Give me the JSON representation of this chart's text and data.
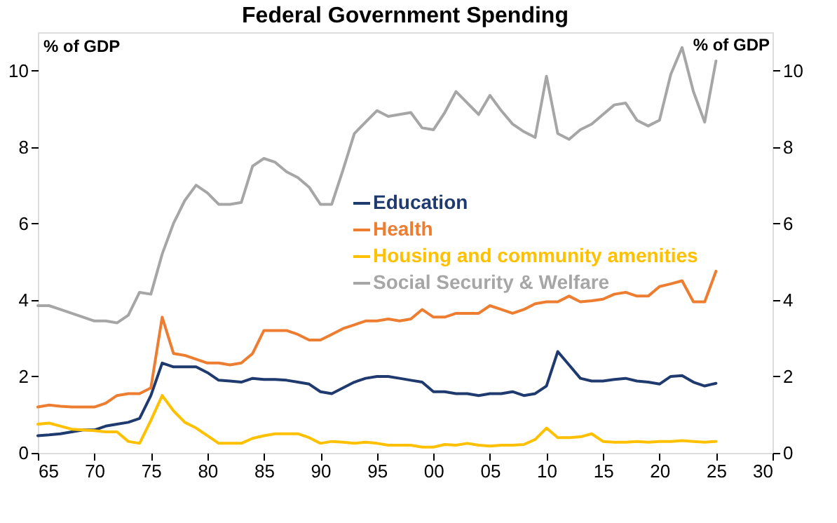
{
  "chart_data": {
    "type": "line",
    "title": "Federal Government Spending",
    "ylabel": "% of GDP",
    "y2label": "% of GDP",
    "x": [
      1965,
      1966,
      1967,
      1968,
      1969,
      1970,
      1971,
      1972,
      1973,
      1974,
      1975,
      1976,
      1977,
      1978,
      1979,
      1980,
      1981,
      1982,
      1983,
      1984,
      1985,
      1986,
      1987,
      1988,
      1989,
      1990,
      1991,
      1992,
      1993,
      1994,
      1995,
      1996,
      1997,
      1998,
      1999,
      2000,
      2001,
      2002,
      2003,
      2004,
      2005,
      2006,
      2007,
      2008,
      2009,
      2010,
      2011,
      2012,
      2013,
      2014,
      2015,
      2016,
      2017,
      2018,
      2019,
      2020,
      2021,
      2022,
      2023,
      2024,
      2025
    ],
    "series": [
      {
        "name": "Education",
        "color": "#1f3a6e",
        "values": [
          0.45,
          0.47,
          0.5,
          0.55,
          0.6,
          0.6,
          0.7,
          0.75,
          0.8,
          0.9,
          1.5,
          2.35,
          2.25,
          2.25,
          2.25,
          2.1,
          1.9,
          1.88,
          1.85,
          1.95,
          1.92,
          1.92,
          1.9,
          1.85,
          1.8,
          1.6,
          1.55,
          1.7,
          1.85,
          1.95,
          2.0,
          2.0,
          1.95,
          1.9,
          1.85,
          1.6,
          1.6,
          1.55,
          1.55,
          1.5,
          1.55,
          1.55,
          1.6,
          1.5,
          1.55,
          1.75,
          2.65,
          2.3,
          1.95,
          1.88,
          1.88,
          1.92,
          1.95,
          1.88,
          1.85,
          1.8,
          2.0,
          2.02,
          1.85,
          1.75,
          1.82
        ]
      },
      {
        "name": "Health",
        "color": "#ed7d31",
        "values": [
          1.2,
          1.25,
          1.22,
          1.2,
          1.2,
          1.2,
          1.3,
          1.5,
          1.55,
          1.55,
          1.7,
          3.55,
          2.6,
          2.55,
          2.45,
          2.35,
          2.35,
          2.3,
          2.35,
          2.6,
          3.2,
          3.2,
          3.2,
          3.1,
          2.95,
          2.95,
          3.1,
          3.25,
          3.35,
          3.45,
          3.45,
          3.5,
          3.45,
          3.5,
          3.75,
          3.55,
          3.55,
          3.65,
          3.65,
          3.65,
          3.85,
          3.75,
          3.65,
          3.75,
          3.9,
          3.95,
          3.95,
          4.1,
          3.95,
          3.98,
          4.02,
          4.15,
          4.2,
          4.1,
          4.1,
          4.35,
          4.42,
          4.5,
          3.95,
          3.95,
          4.75
        ]
      },
      {
        "name": "Housing and community amenities",
        "color": "#ffc000",
        "values": [
          0.75,
          0.78,
          0.7,
          0.62,
          0.6,
          0.58,
          0.55,
          0.55,
          0.3,
          0.25,
          0.85,
          1.5,
          1.1,
          0.8,
          0.65,
          0.45,
          0.25,
          0.25,
          0.25,
          0.38,
          0.45,
          0.5,
          0.5,
          0.5,
          0.4,
          0.25,
          0.3,
          0.28,
          0.25,
          0.28,
          0.25,
          0.2,
          0.2,
          0.2,
          0.15,
          0.15,
          0.22,
          0.2,
          0.25,
          0.2,
          0.18,
          0.2,
          0.2,
          0.22,
          0.35,
          0.65,
          0.4,
          0.4,
          0.42,
          0.5,
          0.3,
          0.28,
          0.28,
          0.3,
          0.28,
          0.3,
          0.3,
          0.32,
          0.3,
          0.28,
          0.3
        ]
      },
      {
        "name": "Social Security & Welfare",
        "color": "#a6a6a6",
        "values": [
          3.85,
          3.85,
          3.75,
          3.65,
          3.55,
          3.45,
          3.45,
          3.4,
          3.6,
          4.2,
          4.15,
          5.2,
          6.0,
          6.6,
          7.0,
          6.8,
          6.5,
          6.5,
          6.55,
          7.5,
          7.7,
          7.6,
          7.35,
          7.2,
          6.95,
          6.5,
          6.5,
          7.4,
          8.35,
          8.65,
          8.95,
          8.8,
          8.85,
          8.9,
          8.5,
          8.45,
          8.9,
          9.45,
          9.15,
          8.85,
          9.35,
          8.95,
          8.6,
          8.4,
          8.25,
          9.85,
          8.35,
          8.2,
          8.45,
          8.6,
          8.85,
          9.1,
          9.15,
          8.7,
          8.55,
          8.7,
          9.9,
          10.6,
          9.45,
          8.65,
          10.25
        ]
      }
    ],
    "xlim": [
      1965,
      2030
    ],
    "xticks": [
      {
        "value": 1965,
        "label": "65"
      },
      {
        "value": 1970,
        "label": "70"
      },
      {
        "value": 1975,
        "label": "75"
      },
      {
        "value": 1980,
        "label": "80"
      },
      {
        "value": 1985,
        "label": "85"
      },
      {
        "value": 1990,
        "label": "90"
      },
      {
        "value": 1995,
        "label": "95"
      },
      {
        "value": 2000,
        "label": "00"
      },
      {
        "value": 2005,
        "label": "05"
      },
      {
        "value": 2010,
        "label": "10"
      },
      {
        "value": 2015,
        "label": "15"
      },
      {
        "value": 2020,
        "label": "20"
      },
      {
        "value": 2025,
        "label": "25"
      },
      {
        "value": 2030,
        "label": "30"
      }
    ],
    "ylim": [
      0,
      11
    ],
    "yticks": [
      0,
      2,
      4,
      6,
      8,
      10
    ],
    "y2lim": [
      0,
      11
    ],
    "y2ticks": [
      0,
      2,
      4,
      6,
      8,
      10
    ],
    "grid": false,
    "legend": "center",
    "marker": "none",
    "line_style": "solid"
  }
}
